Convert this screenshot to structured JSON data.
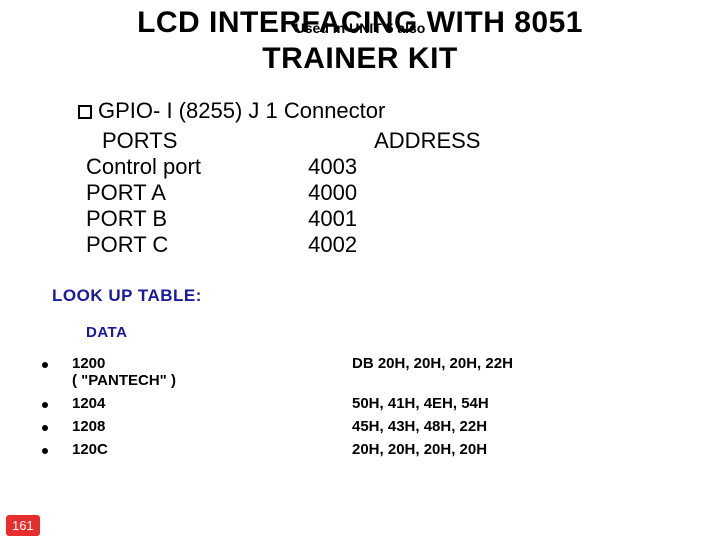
{
  "title": {
    "line1": "LCD INTERFACING WITH 8051",
    "line2": "TRAINER KIT",
    "overlay": "Used in UNIT 5 also"
  },
  "bullet": "GPIO- I (8255) J 1 Connector",
  "headers": {
    "ports": "PORTS",
    "address": "ADDRESS"
  },
  "port_rows": [
    {
      "name": "Control port",
      "addr": "4003"
    },
    {
      "name": "PORT A",
      "addr": "4000"
    },
    {
      "name": "PORT B",
      "addr": "4001"
    },
    {
      "name": "PORT C",
      "addr": "4002"
    }
  ],
  "lookup_title": "LOOK UP TABLE:",
  "data_title": "DATA",
  "lookup_rows": [
    {
      "left": "1200",
      "sub": "( \"PANTECH\" )",
      "right": "DB 20H, 20H, 20H, 22H"
    },
    {
      "left": "1204",
      "sub": "",
      "right": "50H, 41H, 4EH, 54H"
    },
    {
      "left": "1208",
      "sub": "",
      "right": "45H, 43H, 48H, 22H"
    },
    {
      "left": "120C",
      "sub": "",
      "right": "20H, 20H, 20H, 20H"
    }
  ],
  "page_number": "161",
  "colors": {
    "accent_blue": "#1a1aa0",
    "badge_bg": "#e62e2e",
    "badge_fg": "#ffffff",
    "text": "#000000",
    "background": "#ffffff"
  }
}
